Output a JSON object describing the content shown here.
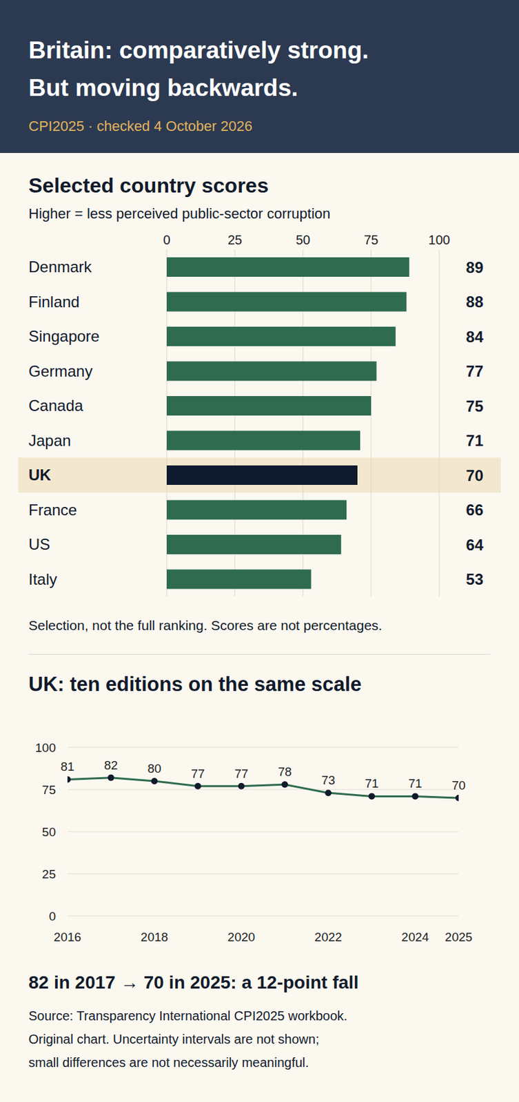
{
  "header": {
    "title_lines": [
      "Britain: comparatively strong.",
      "But moving backwards."
    ],
    "subtitle": "CPI2025 · checked 4 October 2026"
  },
  "chart_data": [
    {
      "type": "bar",
      "title": "Selected country scores",
      "subtitle": "Higher = less perceived public-sector corruption",
      "orientation": "horizontal",
      "categories": [
        "Denmark",
        "Finland",
        "Singapore",
        "Germany",
        "Canada",
        "Japan",
        "UK",
        "France",
        "US",
        "Italy"
      ],
      "values": [
        89,
        88,
        84,
        77,
        75,
        71,
        70,
        66,
        64,
        53
      ],
      "colors": [
        "#2e6b4f",
        "#2e6b4f",
        "#2e6b4f",
        "#2e6b4f",
        "#2e6b4f",
        "#2e6b4f",
        "#0e1a2e",
        "#2e6b4f",
        "#2e6b4f",
        "#2e6b4f"
      ],
      "xlim": [
        0,
        100
      ],
      "xticks": [
        0,
        25,
        50,
        75,
        100
      ],
      "grid": true,
      "data_labels": true,
      "note": "Selection, not the full ranking. Scores are not percentages."
    },
    {
      "type": "line",
      "title": "UK: ten editions on the same scale",
      "x": [
        2016,
        2017,
        2018,
        2019,
        2020,
        2021,
        2022,
        2023,
        2024,
        2025
      ],
      "values": [
        81,
        82,
        80,
        77,
        77,
        78,
        73,
        71,
        71,
        70
      ],
      "color": "#2e6b4f",
      "marker": "circle",
      "xlim": [
        2016,
        2025
      ],
      "xticks": [
        2016,
        2018,
        2020,
        2022,
        2024,
        2025
      ],
      "ylim": [
        0,
        100
      ],
      "yticks": [
        0,
        25,
        50,
        75,
        100
      ],
      "grid": true,
      "data_labels": true,
      "annotation": "82 in 2017 → 70 in 2025: a 12-point fall",
      "source": [
        "Source: Transparency International CPI2025 workbook.",
        "Original chart. Uncertainty intervals are not shown;",
        "small differences are not necessarily meaningful."
      ]
    }
  ]
}
